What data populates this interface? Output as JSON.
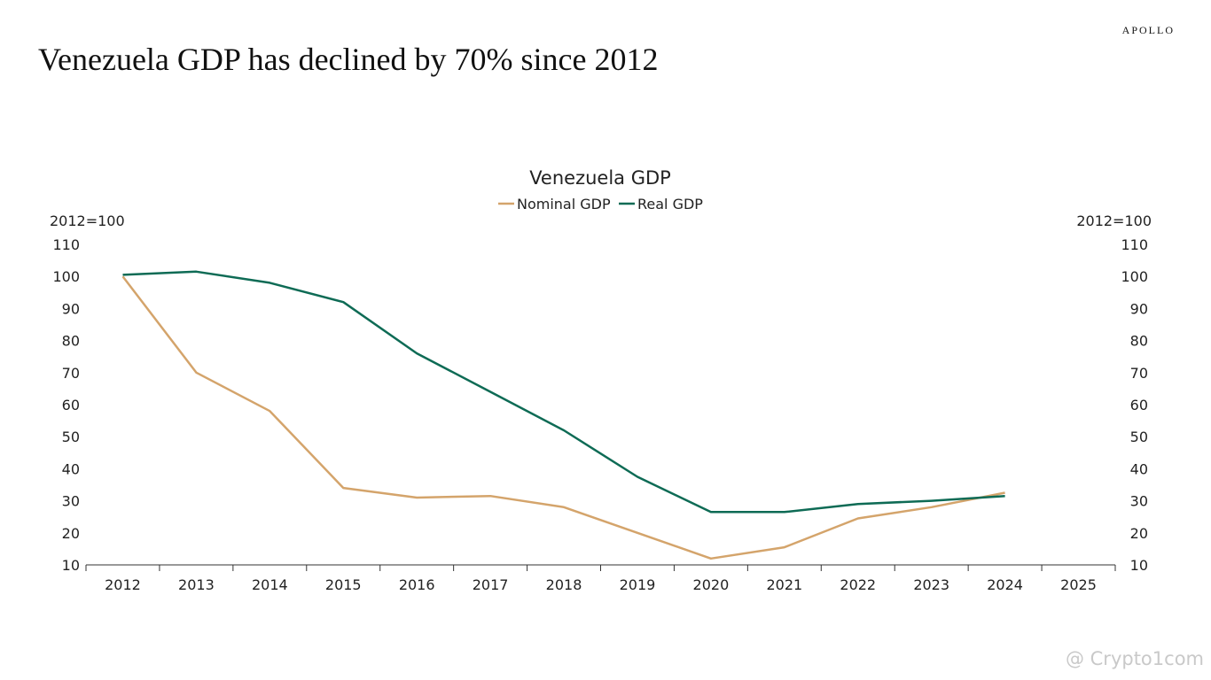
{
  "brand": "APOLLO",
  "headline": "Venezuela GDP has declined by 70% since 2012",
  "watermark": "@ Crypto1com",
  "colors": {
    "nominal": "#D4A46B",
    "real": "#0E6B55",
    "axis": "#333333"
  },
  "chart_data": {
    "type": "line",
    "title": "Venezuela GDP",
    "ylabel_left": "2012=100",
    "ylabel_right": "2012=100",
    "x": [
      "2012",
      "2013",
      "2014",
      "2015",
      "2016",
      "2017",
      "2018",
      "2019",
      "2020",
      "2021",
      "2022",
      "2023",
      "2024",
      "2025"
    ],
    "yticks": [
      10,
      20,
      30,
      40,
      50,
      60,
      70,
      80,
      90,
      100,
      110
    ],
    "ylim": [
      10,
      110
    ],
    "legend_position": "top-center",
    "grid": false,
    "series": [
      {
        "name": "Nominal GDP",
        "values": [
          100,
          70,
          58,
          34,
          31,
          31.5,
          28,
          20,
          12,
          15.5,
          24.5,
          28,
          32.5,
          null
        ]
      },
      {
        "name": "Real GDP",
        "values": [
          100.5,
          101.5,
          98,
          92,
          76,
          64,
          52,
          37.5,
          26.5,
          26.5,
          29,
          30,
          31.5,
          null
        ]
      }
    ]
  }
}
